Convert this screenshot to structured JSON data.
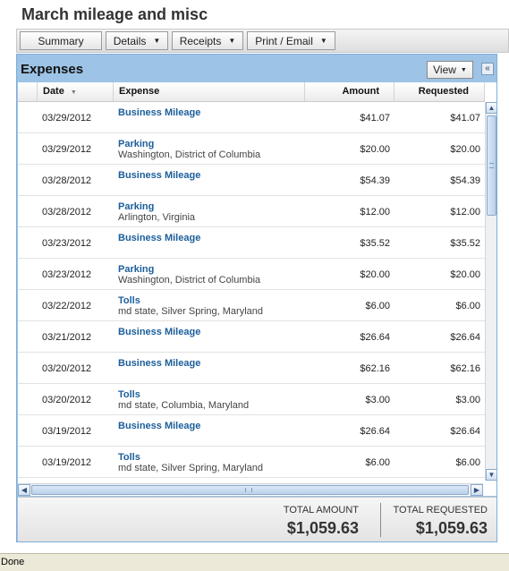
{
  "page": {
    "title": "March mileage and misc"
  },
  "toolbar": {
    "summary": "Summary",
    "details": "Details",
    "receipts": "Receipts",
    "print_email": "Print / Email"
  },
  "panel": {
    "title": "Expenses",
    "view_label": "View",
    "collapse_glyph": "«"
  },
  "columns": {
    "date": "Date",
    "expense": "Expense",
    "amount": "Amount",
    "requested": "Requested"
  },
  "rows": [
    {
      "date": "03/29/2012",
      "title": "Business Mileage",
      "sub": "",
      "amount": "$41.07",
      "requested": "$41.07"
    },
    {
      "date": "03/29/2012",
      "title": "Parking",
      "sub": "Washington, District of Columbia",
      "amount": "$20.00",
      "requested": "$20.00"
    },
    {
      "date": "03/28/2012",
      "title": "Business Mileage",
      "sub": "",
      "amount": "$54.39",
      "requested": "$54.39"
    },
    {
      "date": "03/28/2012",
      "title": "Parking",
      "sub": "Arlington, Virginia",
      "amount": "$12.00",
      "requested": "$12.00"
    },
    {
      "date": "03/23/2012",
      "title": "Business Mileage",
      "sub": "",
      "amount": "$35.52",
      "requested": "$35.52"
    },
    {
      "date": "03/23/2012",
      "title": "Parking",
      "sub": "Washington, District of Columbia",
      "amount": "$20.00",
      "requested": "$20.00"
    },
    {
      "date": "03/22/2012",
      "title": "Tolls",
      "sub": "md state, Silver Spring, Maryland",
      "amount": "$6.00",
      "requested": "$6.00"
    },
    {
      "date": "03/21/2012",
      "title": "Business Mileage",
      "sub": "",
      "amount": "$26.64",
      "requested": "$26.64"
    },
    {
      "date": "03/20/2012",
      "title": "Business Mileage",
      "sub": "",
      "amount": "$62.16",
      "requested": "$62.16"
    },
    {
      "date": "03/20/2012",
      "title": "Tolls",
      "sub": "md state, Columbia, Maryland",
      "amount": "$3.00",
      "requested": "$3.00"
    },
    {
      "date": "03/19/2012",
      "title": "Business Mileage",
      "sub": "",
      "amount": "$26.64",
      "requested": "$26.64"
    },
    {
      "date": "03/19/2012",
      "title": "Tolls",
      "sub": "md state, Silver Spring, Maryland",
      "amount": "$6.00",
      "requested": "$6.00"
    }
  ],
  "totals": {
    "amount_label": "TOTAL AMOUNT",
    "amount_value": "$1,059.63",
    "requested_label": "TOTAL REQUESTED",
    "requested_value": "$1,059.63"
  },
  "status": {
    "text": "Done"
  },
  "colors": {
    "accent": "#9dc3e6",
    "link": "#1b5e9a"
  }
}
